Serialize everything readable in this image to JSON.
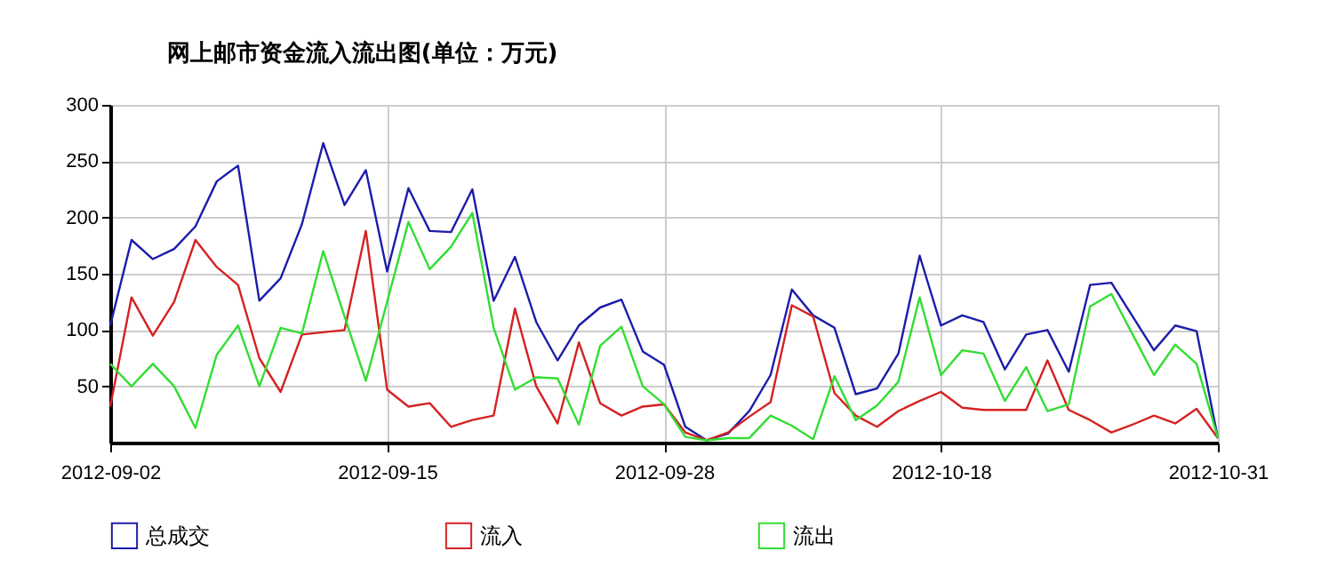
{
  "chart_data": {
    "type": "line",
    "title": "网上邮市资金流入流出图(单位：万元)",
    "categories": [
      "2012-09-02",
      null,
      null,
      null,
      null,
      null,
      null,
      null,
      null,
      null,
      null,
      null,
      null,
      "2012-09-15",
      null,
      null,
      null,
      null,
      null,
      null,
      null,
      null,
      null,
      null,
      null,
      null,
      "2012-09-28",
      null,
      null,
      null,
      null,
      null,
      null,
      null,
      null,
      null,
      null,
      null,
      null,
      "2012-10-18",
      null,
      null,
      null,
      null,
      null,
      null,
      null,
      null,
      null,
      null,
      null,
      null,
      "2012-10-31"
    ],
    "series": [
      {
        "name": "总成交",
        "color": "#1c1caa",
        "values": [
          104,
          180,
          163,
          172,
          192,
          232,
          246,
          126,
          146,
          194,
          266,
          211,
          242,
          152,
          226,
          188,
          187,
          225,
          126,
          165,
          107,
          73,
          104,
          120,
          127,
          81,
          69,
          14,
          2,
          8,
          28,
          60,
          136,
          113,
          102,
          43,
          48,
          79,
          166,
          104,
          113,
          107,
          65,
          96,
          100,
          63,
          140,
          142,
          112,
          82,
          104,
          99,
          4
        ]
      },
      {
        "name": "流入",
        "color": "#d42222",
        "values": [
          32,
          129,
          95,
          125,
          180,
          156,
          140,
          75,
          45,
          96,
          98,
          100,
          188,
          47,
          32,
          35,
          14,
          20,
          24,
          119,
          50,
          17,
          89,
          35,
          24,
          32,
          34,
          9,
          2,
          9,
          23,
          36,
          122,
          112,
          44,
          24,
          14,
          28,
          37,
          45,
          31,
          29,
          29,
          29,
          73,
          29,
          20,
          9,
          16,
          24,
          17,
          30,
          4
        ]
      },
      {
        "name": "流出",
        "color": "#33dd33",
        "values": [
          70,
          50,
          70,
          50,
          13,
          78,
          104,
          50,
          102,
          97,
          170,
          112,
          55,
          125,
          196,
          154,
          174,
          204,
          102,
          47,
          58,
          57,
          16,
          86,
          103,
          50,
          34,
          5,
          2,
          4,
          4,
          24,
          15,
          3,
          59,
          20,
          33,
          54,
          129,
          60,
          82,
          79,
          37,
          67,
          28,
          34,
          121,
          132,
          96,
          60,
          87,
          70,
          4
        ]
      }
    ],
    "ylim": [
      0,
      300
    ],
    "yticks": [
      50,
      100,
      150,
      200,
      250,
      300
    ],
    "grid": true,
    "legend": "bottom",
    "marker": "none",
    "line_style": "solid"
  }
}
